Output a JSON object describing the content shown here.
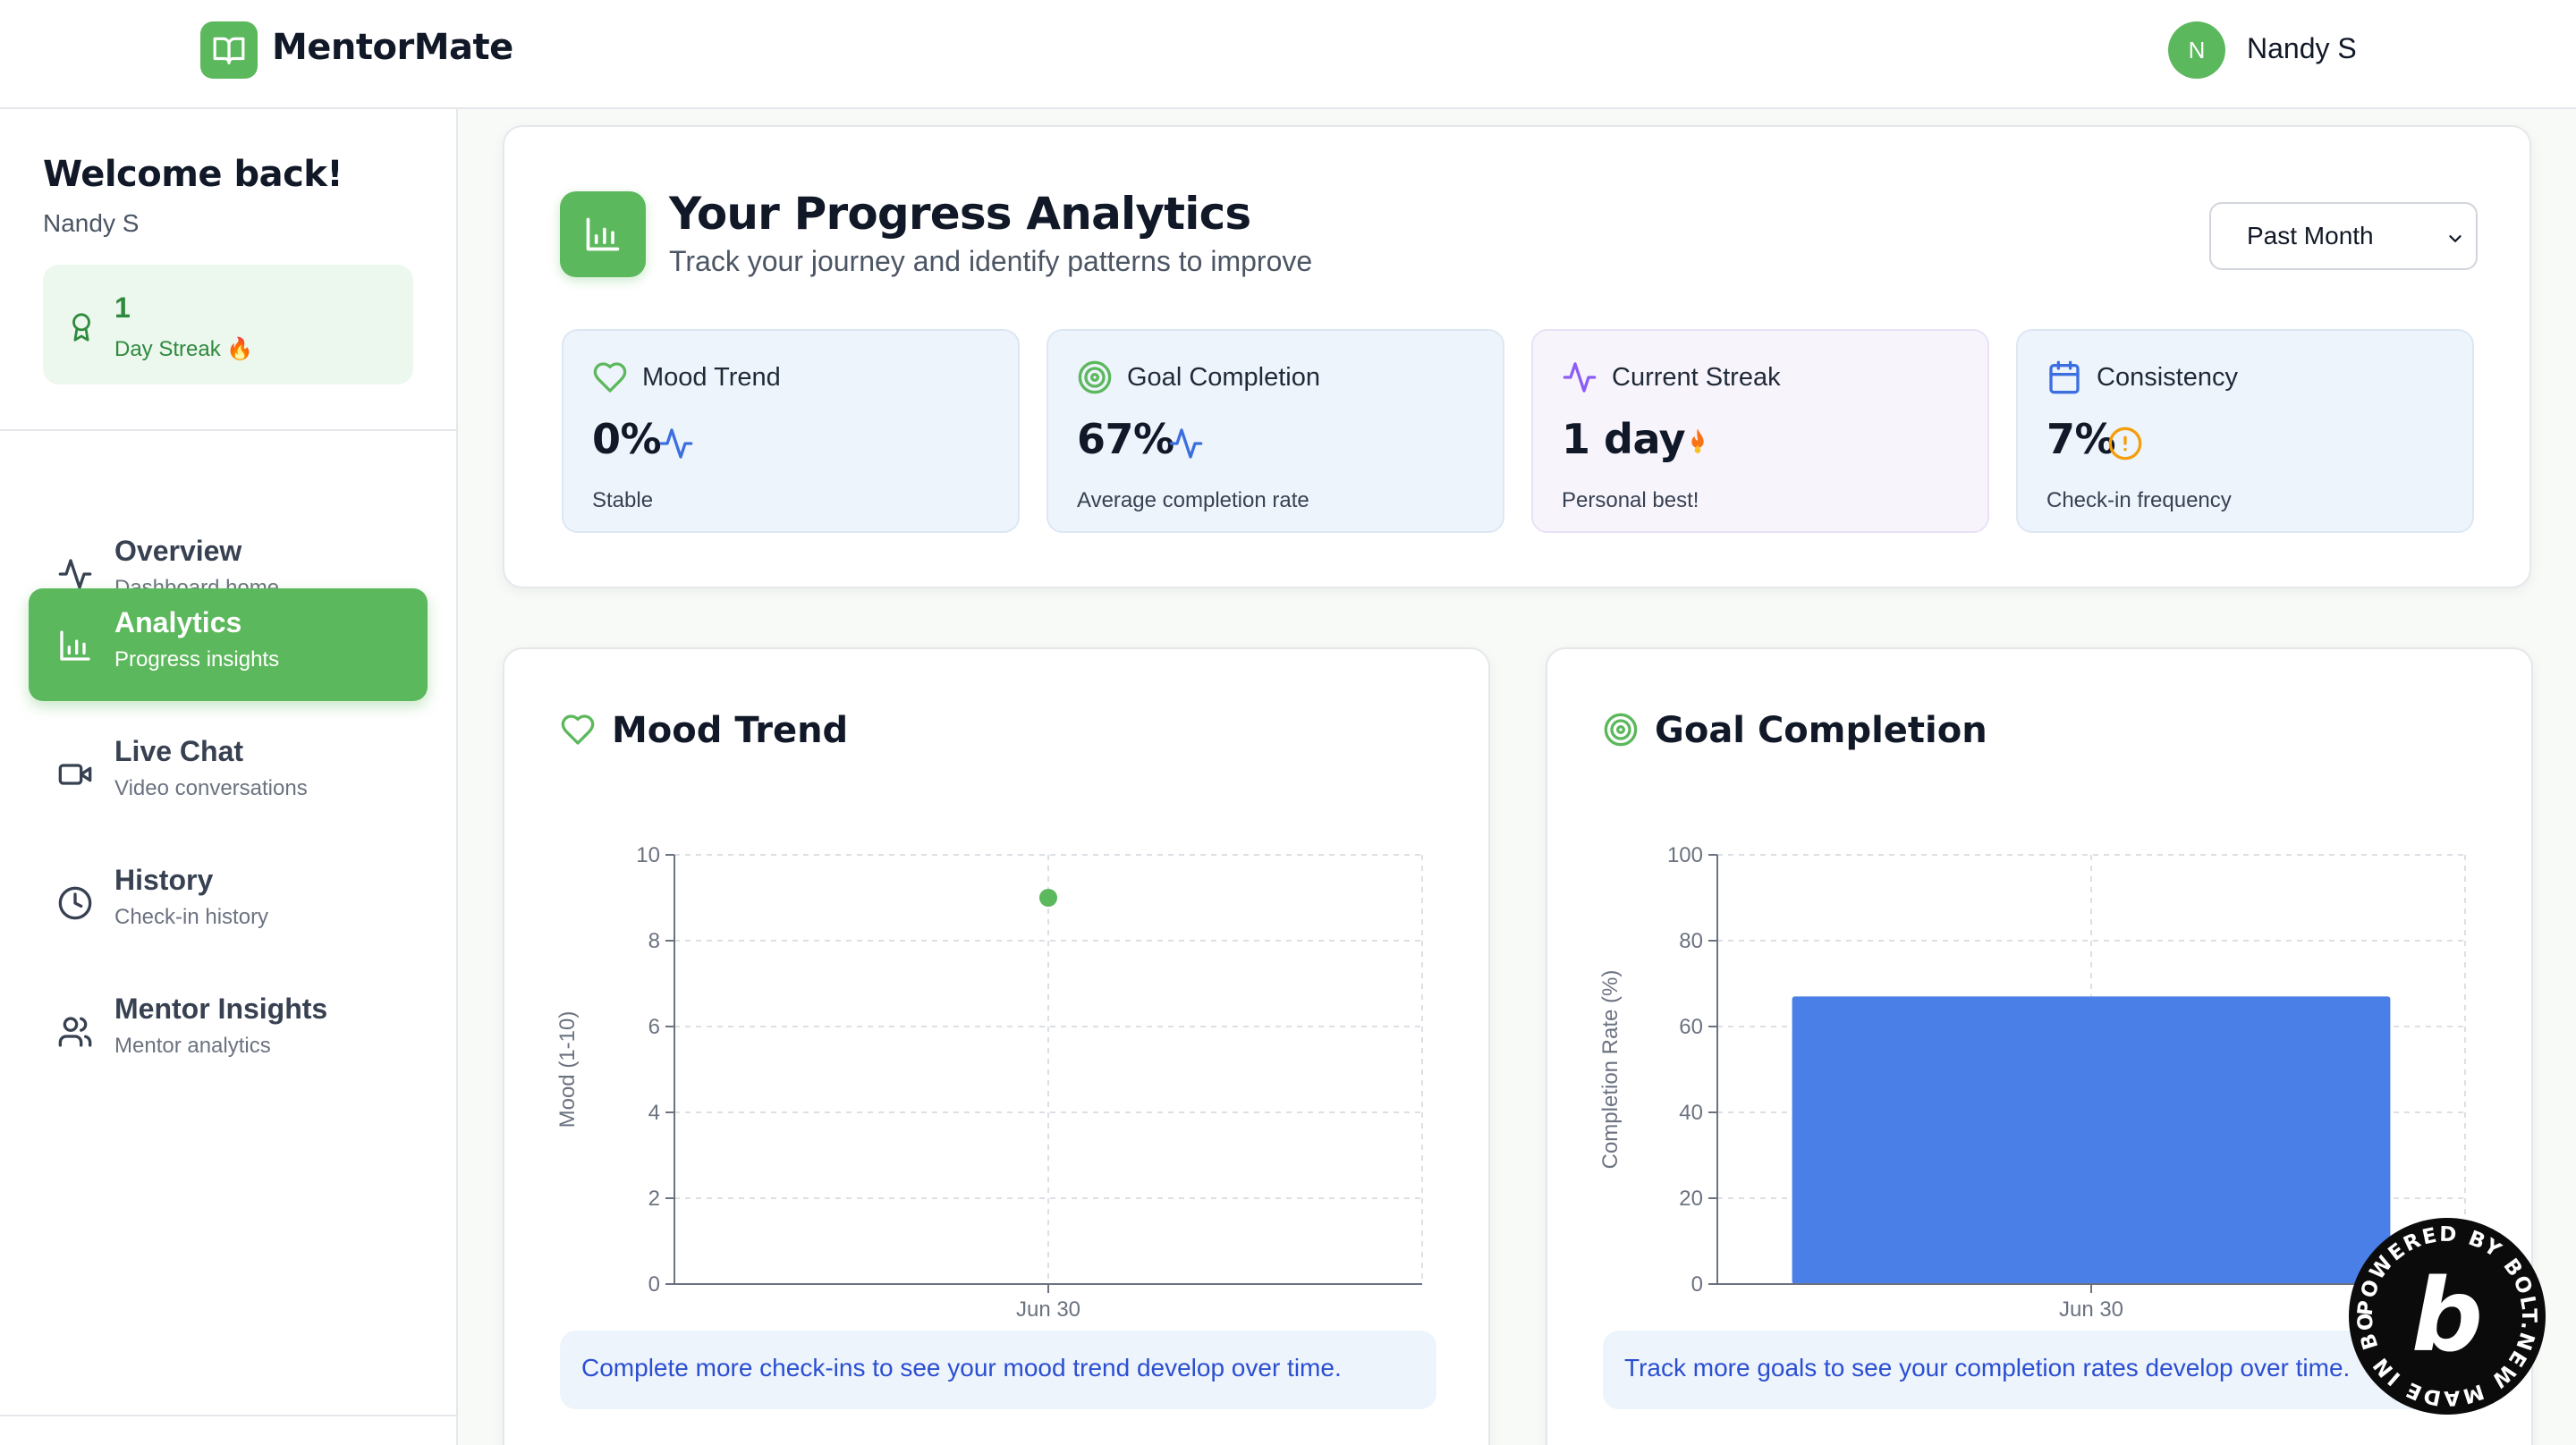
{
  "header": {
    "brand": "MentorMate",
    "user_initial": "N",
    "user_name": "Nandy S",
    "brand_color": "#5cb85c"
  },
  "sidebar": {
    "welcome_title": "Welcome back!",
    "welcome_name": "Nandy S",
    "streak": {
      "count": "1",
      "label": "Day Streak 🔥",
      "icon": "award-icon"
    },
    "items": [
      {
        "title": "Overview",
        "subtitle": "Dashboard home",
        "icon": "activity-icon",
        "active": false
      },
      {
        "title": "Analytics",
        "subtitle": "Progress insights",
        "icon": "bar-chart-icon",
        "active": true
      },
      {
        "title": "Live Chat",
        "subtitle": "Video conversations",
        "icon": "video-icon",
        "active": false
      },
      {
        "title": "History",
        "subtitle": "Check-in history",
        "icon": "clock-icon",
        "active": false
      },
      {
        "title": "Mentor Insights",
        "subtitle": "Mentor analytics",
        "icon": "users-icon",
        "active": false
      }
    ]
  },
  "analytics": {
    "title": "Your Progress Analytics",
    "subtitle": "Track your journey and identify patterns to improve",
    "period": "Past Month",
    "stats": [
      {
        "title": "Mood Trend",
        "value": "0%",
        "sub": "Stable",
        "icon": "heart-icon",
        "trend_icon": "activity-icon"
      },
      {
        "title": "Goal Completion",
        "value": "67%",
        "sub": "Average completion rate",
        "icon": "target-icon",
        "trend_icon": "activity-icon"
      },
      {
        "title": "Current Streak",
        "value": "1 day",
        "sub": "Personal best!",
        "icon": "activity-icon",
        "trend_icon": "flame-icon"
      },
      {
        "title": "Consistency",
        "value": "7%",
        "sub": "Check-in frequency",
        "icon": "calendar-icon",
        "trend_icon": "alert-circle-icon"
      }
    ]
  },
  "mood_chart": {
    "title": "Mood Trend",
    "note": "Complete more check-ins to see your mood trend develop over time.",
    "accent": "#5cb85c"
  },
  "goal_chart": {
    "title": "Goal Completion",
    "note": "Track more goals to see your completion rates develop over time.",
    "accent": "#4a7fe8"
  },
  "badge": {
    "text": "POWERED BY BOLT.NEW MADE IN BOLT.NEW"
  },
  "chart_data": [
    {
      "type": "scatter",
      "title": "Mood Trend",
      "xlabel": "",
      "ylabel": "Mood (1-10)",
      "x": [
        "Jun 30"
      ],
      "series": [
        {
          "values": [
            9
          ]
        }
      ],
      "ylim": [
        0,
        10
      ],
      "yticks": [
        0,
        2,
        4,
        6,
        8,
        10
      ],
      "grid": true
    },
    {
      "type": "bar",
      "title": "Goal Completion",
      "xlabel": "",
      "ylabel": "Completion Rate (%)",
      "categories": [
        "Jun 30"
      ],
      "values": [
        67
      ],
      "ylim": [
        0,
        100
      ],
      "yticks": [
        0,
        20,
        40,
        60,
        80,
        100
      ],
      "grid": true
    }
  ]
}
